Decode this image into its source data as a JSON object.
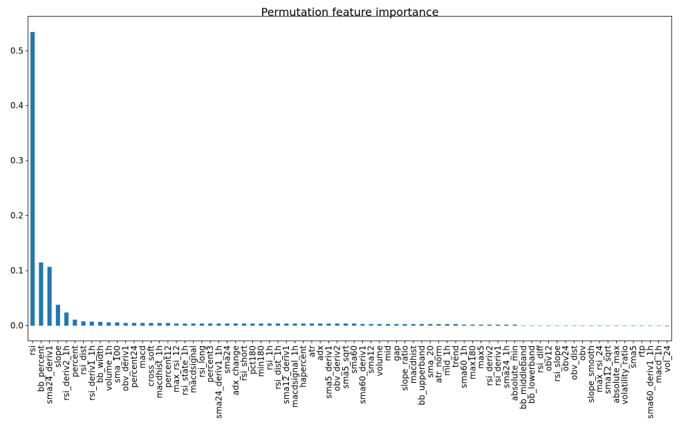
{
  "chart_data": {
    "type": "bar",
    "title": "Permutation feature importance",
    "xlabel": "",
    "ylabel": "",
    "ylim": [
      -0.027,
      0.562
    ],
    "yticks": [
      "0.0",
      "0.1",
      "0.2",
      "0.3",
      "0.4",
      "0.5"
    ],
    "grid": false,
    "legend": "none",
    "bar_color": "#1f77b4",
    "categories": [
      "rsi",
      "bb_percent",
      "sma24_deriv1",
      "slope",
      "rsi_deriv2_1h",
      "percent",
      "rsi_dist",
      "rsi_deriv1_1h",
      "bb_width",
      "volume_1h",
      "sma_100",
      "obv_deriv1",
      "percent24",
      "macd",
      "cross_soft",
      "macdhist_1h",
      "percent12",
      "max_rsi_12",
      "rsi_state_1h",
      "macdsignal",
      "rsi_long",
      "percent3",
      "sma24_deriv1_1h",
      "sma24",
      "adx_change",
      "rsi_short",
      "pct180",
      "min180",
      "rsi_1h",
      "rsi_dist_1h",
      "sma12_deriv1",
      "macdsignal_1h",
      "hapercent",
      "atr",
      "adx",
      "sma5_deriv1",
      "obv_deriv2",
      "sma5_sqrt",
      "sma60",
      "sma60_deriv1",
      "sma12",
      "volume",
      "mid",
      "gap",
      "slope_ratio",
      "macdhist",
      "bb_upperband",
      "sma_20",
      "atr_norm",
      "mid_1h",
      "trend",
      "sma60_1h",
      "max180",
      "max5",
      "rsi_deriv2",
      "rsi_deriv1",
      "sma24_1h",
      "absolute_min",
      "bb_middleband",
      "bb_lowerband",
      "rsi_diff",
      "obv12",
      "rsi_slope",
      "obv24",
      "obv_dist",
      "obv",
      "slope_smooth",
      "max_rsi_24",
      "sma12_sqrt",
      "absolute_max",
      "volatility_ratio",
      "sma5",
      "rtp",
      "sma60_deriv1_1h",
      "macd_1h",
      "vol_24"
    ],
    "values": [
      0.534,
      0.115,
      0.107,
      0.038,
      0.024,
      0.011,
      0.008,
      0.0075,
      0.007,
      0.006,
      0.006,
      0.005,
      0.005,
      0.005,
      0.005,
      0.005,
      0.005,
      0.004,
      0.004,
      0.004,
      0.004,
      0.004,
      0.004,
      0.004,
      0.004,
      0.004,
      0.004,
      0.004,
      0.004,
      0.004,
      0.004,
      0.004,
      0.004,
      0.004,
      0.004,
      0.004,
      0.004,
      0.004,
      0.004,
      0.003,
      0.003,
      0.003,
      0.003,
      0.003,
      0.003,
      0.003,
      0.003,
      0.003,
      0.003,
      0.003,
      0.003,
      0.002,
      0.002,
      0.002,
      0.002,
      0.002,
      0.002,
      0.002,
      0.0,
      0.0,
      0.0,
      0.0,
      0.0,
      0.0,
      0.0,
      0.0,
      0.0,
      0.0,
      0.0,
      0.0,
      0.0,
      0.0,
      0.0,
      0.0,
      0.0,
      -0.001
    ]
  }
}
